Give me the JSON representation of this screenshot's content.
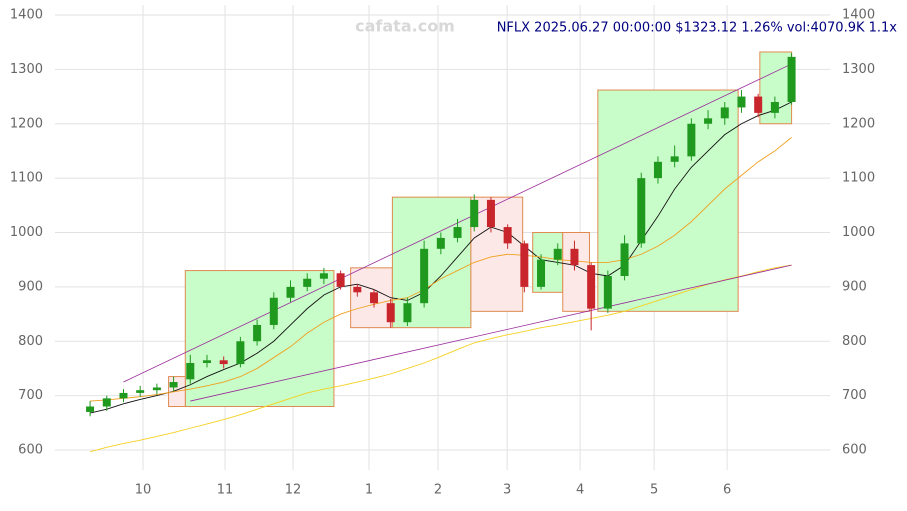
{
  "chart_data": {
    "type": "candlestick",
    "title": "NFLX 2025.06.27 00:00:00 $1323.12 1.26% vol:4070.9K 1.1x",
    "watermark": "cafata.com",
    "open": [
      670,
      680,
      695,
      705,
      710,
      715,
      730,
      760,
      765,
      758,
      800,
      830,
      880,
      900,
      915,
      925,
      900,
      890,
      870,
      835,
      870,
      970,
      990,
      1010,
      1060,
      1010,
      980,
      900,
      950,
      970,
      940,
      860,
      920,
      980,
      1100,
      1130,
      1140,
      1200,
      1210,
      1230,
      1250,
      1220,
      1240
    ],
    "high": [
      690,
      700,
      712,
      718,
      722,
      735,
      775,
      775,
      772,
      808,
      840,
      890,
      912,
      925,
      935,
      930,
      905,
      895,
      878,
      880,
      985,
      1000,
      1025,
      1070,
      1065,
      1015,
      985,
      960,
      980,
      985,
      945,
      930,
      995,
      1110,
      1140,
      1160,
      1210,
      1225,
      1240,
      1262,
      1255,
      1250,
      1330
    ],
    "low": [
      662,
      672,
      688,
      698,
      702,
      708,
      722,
      752,
      750,
      752,
      792,
      822,
      872,
      892,
      905,
      895,
      882,
      862,
      825,
      828,
      862,
      960,
      982,
      1002,
      1000,
      970,
      890,
      895,
      940,
      930,
      820,
      852,
      912,
      972,
      1090,
      1120,
      1132,
      1190,
      1198,
      1220,
      1212,
      1210,
      1235
    ],
    "close": [
      680,
      695,
      705,
      710,
      715,
      725,
      760,
      765,
      758,
      800,
      830,
      880,
      900,
      915,
      925,
      900,
      890,
      870,
      835,
      870,
      970,
      990,
      1010,
      1060,
      1010,
      980,
      900,
      950,
      970,
      940,
      860,
      920,
      980,
      1100,
      1130,
      1140,
      1200,
      1210,
      1230,
      1250,
      1220,
      1240,
      1323
    ],
    "up_color": "#1f9a1f",
    "down_color": "#c8262c",
    "series": [
      {
        "color": "#111111",
        "values": [
          668,
          675,
          685,
          693,
          700,
          708,
          720,
          735,
          748,
          760,
          778,
          800,
          830,
          860,
          885,
          900,
          905,
          895,
          880,
          875,
          890,
          920,
          955,
          990,
          1010,
          1000,
          975,
          950,
          945,
          940,
          925,
          920,
          940,
          985,
          1030,
          1080,
          1120,
          1150,
          1180,
          1200,
          1215,
          1225,
          1240
        ]
      },
      {
        "color": "#f0a020",
        "values": [
          690,
          692,
          695,
          698,
          702,
          707,
          712,
          718,
          725,
          735,
          750,
          770,
          790,
          815,
          835,
          850,
          860,
          868,
          875,
          880,
          895,
          915,
          930,
          945,
          955,
          960,
          958,
          955,
          950,
          948,
          945,
          945,
          950,
          960,
          975,
          995,
          1020,
          1050,
          1080,
          1105,
          1130,
          1150,
          1175
        ]
      },
      {
        "color": "#f5d020",
        "values": [
          597,
          605,
          612,
          618,
          625,
          632,
          640,
          648,
          656,
          665,
          675,
          685,
          695,
          705,
          712,
          718,
          725,
          732,
          740,
          750,
          760,
          772,
          785,
          797,
          805,
          812,
          818,
          825,
          830,
          836,
          842,
          848,
          855,
          865,
          875,
          885,
          895,
          905,
          913,
          920,
          928,
          935,
          940
        ]
      }
    ],
    "trendlines": [
      {
        "x": [
          2,
          42
        ],
        "y": [
          725,
          1310
        ],
        "color": "#9a2a9a"
      },
      {
        "x": [
          6,
          42
        ],
        "y": [
          690,
          940
        ],
        "color": "#9a2a9a"
      }
    ],
    "boxes": [
      {
        "x": [
          5.7,
          14.6
        ],
        "y": [
          680,
          930
        ],
        "color": "#c8fcc8"
      },
      {
        "x": [
          4.7,
          5.7
        ],
        "y": [
          680,
          735
        ],
        "color": "#fde8e8"
      },
      {
        "x": [
          15.6,
          18.1
        ],
        "y": [
          825,
          935
        ],
        "color": "#fde8e8"
      },
      {
        "x": [
          18.1,
          22.8
        ],
        "y": [
          825,
          1065
        ],
        "color": "#c8fcc8"
      },
      {
        "x": [
          22.8,
          25.9
        ],
        "y": [
          855,
          1065
        ],
        "color": "#fde8e8"
      },
      {
        "x": [
          26.5,
          28.3
        ],
        "y": [
          890,
          1000
        ],
        "color": "#c8fcc8"
      },
      {
        "x": [
          28.3,
          29.9
        ],
        "y": [
          855,
          1000
        ],
        "color": "#fde8e8"
      },
      {
        "x": [
          30.4,
          38.8
        ],
        "y": [
          855,
          1262
        ],
        "color": "#c8fcc8"
      },
      {
        "x": [
          40.1,
          42
        ],
        "y": [
          1200,
          1332
        ],
        "color": "#c8fcc8"
      }
    ],
    "xlim": [
      -2.1,
      44.3
    ],
    "xticks": [
      {
        "value": 3.17,
        "label": "10"
      },
      {
        "value": 8.08,
        "label": "11"
      },
      {
        "value": 12.15,
        "label": "12"
      },
      {
        "value": 16.7,
        "label": "1"
      },
      {
        "value": 20.83,
        "label": "2"
      },
      {
        "value": 24.97,
        "label": "3"
      },
      {
        "value": 29.34,
        "label": "4"
      },
      {
        "value": 33.77,
        "label": "5"
      },
      {
        "value": 38.14,
        "label": "6"
      }
    ],
    "ylim": [
      600,
      1400
    ],
    "yticks": [
      600,
      700,
      800,
      900,
      1000,
      1100,
      1200,
      1300,
      1400
    ],
    "grid": true
  }
}
